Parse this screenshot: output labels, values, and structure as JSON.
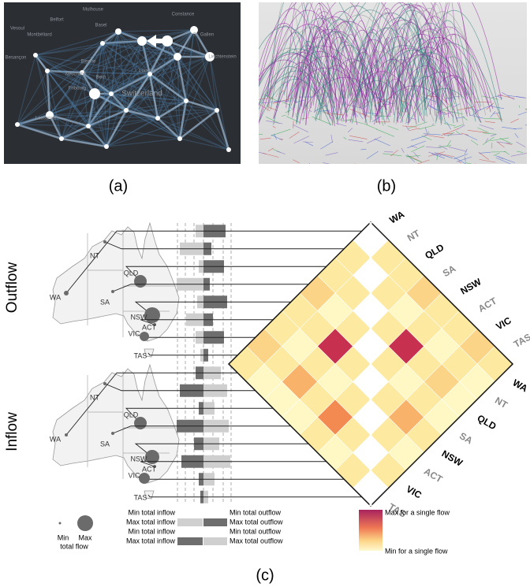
{
  "panels": {
    "a": {
      "label": "(a)",
      "places": [
        "Mulhouse",
        "Belfort",
        "Vesoul",
        "Montbéliard",
        "Basel",
        "Constance",
        "St. Gallen",
        "Liechtenstein",
        "Besançon",
        "Bienne",
        "Neuchâtel",
        "Bern",
        "Lucerne",
        "Fribourg",
        "Switzerland",
        "Lausanne"
      ]
    },
    "b": {
      "label": "(b)"
    },
    "c": {
      "label": "(c)",
      "outflow": {
        "title": "Outflow",
        "map_labels": [
          "WA",
          "NT",
          "QLD",
          "SA",
          "NSW",
          "ACT",
          "VIC",
          "TAS"
        ]
      },
      "inflow": {
        "title": "Inflow",
        "map_labels": [
          "WA",
          "NT",
          "QLD",
          "SA",
          "NSW",
          "ACT",
          "VIC",
          "TAS"
        ]
      },
      "matrix": {
        "outflow_labels": [
          "WA",
          "NT",
          "QLD",
          "SA",
          "NSW",
          "ACT",
          "VIC",
          "TAS"
        ],
        "inflow_labels": [
          "WA",
          "NT",
          "QLD",
          "SA",
          "NSW",
          "ACT",
          "VIC",
          "TAS"
        ],
        "colors": [
          [
            "#ffffff",
            "#fde9a0",
            "#fde9a0",
            "#fcd487",
            "#fde9a0",
            "#fde9a0",
            "#fcd487",
            "#fde9a0"
          ],
          [
            "#fde9a0",
            "#ffffff",
            "#fde9a0",
            "#fff7c4",
            "#fde9a0",
            "#fff7c4",
            "#fde9a0",
            "#fff7c4"
          ],
          [
            "#fde9a0",
            "#fde9a0",
            "#ffffff",
            "#fde9a0",
            "#c8304f",
            "#fde9a0",
            "#fcd487",
            "#fff7c4"
          ],
          [
            "#fcd487",
            "#fff7c4",
            "#fde9a0",
            "#ffffff",
            "#fde9a0",
            "#fff7c4",
            "#fde9a0",
            "#fff7c4"
          ],
          [
            "#fde9a0",
            "#fde9a0",
            "#c8304f",
            "#fde9a0",
            "#ffffff",
            "#fde9a0",
            "#f9b26a",
            "#fde9a0"
          ],
          [
            "#fde9a0",
            "#fff7c4",
            "#fde9a0",
            "#fff7c4",
            "#fde9a0",
            "#ffffff",
            "#fde9a0",
            "#fff7c4"
          ],
          [
            "#fcd487",
            "#fde9a0",
            "#f9b26a",
            "#fde9a0",
            "#f28a52",
            "#fde9a0",
            "#ffffff",
            "#fde9a0"
          ],
          [
            "#fde9a0",
            "#fff7c4",
            "#fff7c4",
            "#fff7c4",
            "#fde9a0",
            "#fff7c4",
            "#fde9a0",
            "#ffffff"
          ]
        ]
      },
      "legend": {
        "circle_min": "Min",
        "circle_max": "Max",
        "circle_caption": "total flow",
        "bar_rows": [
          [
            "Min total inflow",
            "Min total outflow"
          ],
          [
            "Max total inflow",
            "Max total outflow"
          ],
          [
            "Min total inflow",
            "Min total outflow"
          ],
          [
            "Max total inflow",
            "Max total outflow"
          ]
        ],
        "scale_max": "Max for a single flow",
        "scale_min": "Min for a single flow"
      }
    }
  }
}
